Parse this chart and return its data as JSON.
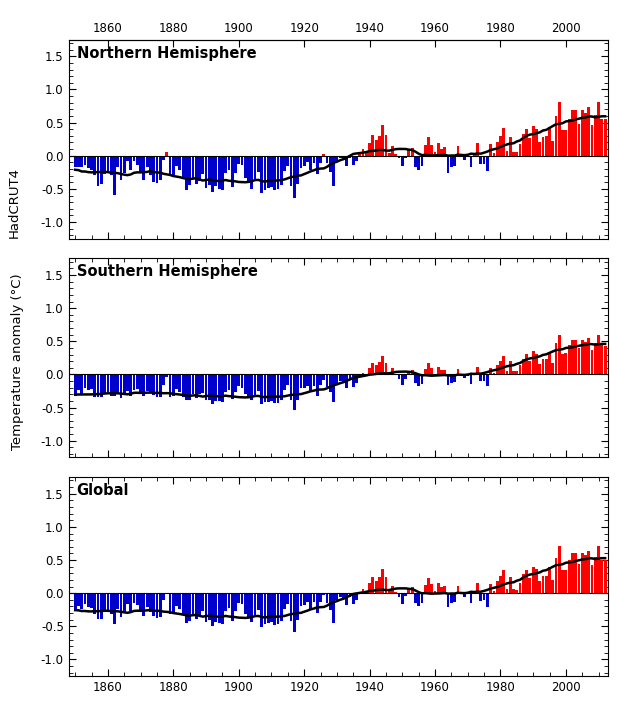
{
  "ylabel_top": "HadCRUT4",
  "ylabel_bot": "Temperature anomaly (°C)",
  "panels": [
    "Northern Hemisphere",
    "Southern Hemisphere",
    "Global"
  ],
  "years": [
    1850,
    1851,
    1852,
    1853,
    1854,
    1855,
    1856,
    1857,
    1858,
    1859,
    1860,
    1861,
    1862,
    1863,
    1864,
    1865,
    1866,
    1867,
    1868,
    1869,
    1870,
    1871,
    1872,
    1873,
    1874,
    1875,
    1876,
    1877,
    1878,
    1879,
    1880,
    1881,
    1882,
    1883,
    1884,
    1885,
    1886,
    1887,
    1888,
    1889,
    1890,
    1891,
    1892,
    1893,
    1894,
    1895,
    1896,
    1897,
    1898,
    1899,
    1900,
    1901,
    1902,
    1903,
    1904,
    1905,
    1906,
    1907,
    1908,
    1909,
    1910,
    1911,
    1912,
    1913,
    1914,
    1915,
    1916,
    1917,
    1918,
    1919,
    1920,
    1921,
    1922,
    1923,
    1924,
    1925,
    1926,
    1927,
    1928,
    1929,
    1930,
    1931,
    1932,
    1933,
    1934,
    1935,
    1936,
    1937,
    1938,
    1939,
    1940,
    1941,
    1942,
    1943,
    1944,
    1945,
    1946,
    1947,
    1948,
    1949,
    1950,
    1951,
    1952,
    1953,
    1954,
    1955,
    1956,
    1957,
    1958,
    1959,
    1960,
    1961,
    1962,
    1963,
    1964,
    1965,
    1966,
    1967,
    1968,
    1969,
    1970,
    1971,
    1972,
    1973,
    1974,
    1975,
    1976,
    1977,
    1978,
    1979,
    1980,
    1981,
    1982,
    1983,
    1984,
    1985,
    1986,
    1987,
    1988,
    1989,
    1990,
    1991,
    1992,
    1993,
    1994,
    1995,
    1996,
    1997,
    1998,
    1999,
    2000,
    2001,
    2002,
    2003,
    2004,
    2005,
    2006,
    2007,
    2008,
    2009,
    2010,
    2011,
    2012
  ],
  "nh": [
    -0.17,
    -0.164,
    -0.177,
    -0.133,
    -0.185,
    -0.221,
    -0.296,
    -0.457,
    -0.43,
    -0.274,
    -0.232,
    -0.288,
    -0.599,
    -0.177,
    -0.361,
    -0.262,
    -0.073,
    -0.208,
    -0.072,
    -0.146,
    -0.262,
    -0.372,
    -0.176,
    -0.291,
    -0.394,
    -0.407,
    -0.37,
    -0.066,
    0.064,
    -0.299,
    -0.283,
    -0.157,
    -0.213,
    -0.332,
    -0.516,
    -0.445,
    -0.34,
    -0.432,
    -0.374,
    -0.272,
    -0.494,
    -0.44,
    -0.553,
    -0.464,
    -0.497,
    -0.514,
    -0.263,
    -0.221,
    -0.474,
    -0.264,
    -0.117,
    -0.134,
    -0.341,
    -0.413,
    -0.495,
    -0.349,
    -0.245,
    -0.565,
    -0.52,
    -0.481,
    -0.465,
    -0.52,
    -0.497,
    -0.444,
    -0.237,
    -0.148,
    -0.453,
    -0.638,
    -0.422,
    -0.181,
    -0.157,
    -0.099,
    -0.213,
    -0.107,
    -0.277,
    -0.113,
    0.025,
    -0.108,
    -0.244,
    -0.464,
    -0.072,
    -0.029,
    -0.058,
    -0.152,
    -0.028,
    -0.133,
    -0.083,
    0.053,
    0.097,
    0.078,
    0.195,
    0.314,
    0.231,
    0.291,
    0.463,
    0.313,
    0.04,
    0.14,
    0.024,
    -0.04,
    -0.162,
    -0.029,
    0.108,
    0.122,
    -0.177,
    -0.213,
    -0.152,
    0.162,
    0.285,
    0.168,
    0.063,
    0.188,
    0.102,
    0.134,
    -0.253,
    -0.171,
    -0.148,
    0.144,
    0.018,
    -0.061,
    0.019,
    -0.17,
    0.02,
    0.193,
    -0.131,
    -0.119,
    -0.237,
    0.174,
    0.036,
    0.212,
    0.298,
    0.413,
    0.079,
    0.285,
    0.064,
    0.056,
    0.178,
    0.332,
    0.408,
    0.263,
    0.444,
    0.408,
    0.21,
    0.283,
    0.296,
    0.434,
    0.218,
    0.601,
    0.81,
    0.39,
    0.393,
    0.557,
    0.689,
    0.687,
    0.479,
    0.687,
    0.648,
    0.734,
    0.467,
    0.618,
    0.817,
    0.558,
    0.556
  ],
  "sh": [
    -0.329,
    -0.229,
    -0.288,
    -0.201,
    -0.24,
    -0.219,
    -0.338,
    -0.335,
    -0.344,
    -0.282,
    -0.262,
    -0.329,
    -0.328,
    -0.302,
    -0.351,
    -0.3,
    -0.253,
    -0.321,
    -0.232,
    -0.22,
    -0.269,
    -0.322,
    -0.256,
    -0.263,
    -0.303,
    -0.338,
    -0.339,
    -0.152,
    -0.045,
    -0.334,
    -0.322,
    -0.218,
    -0.261,
    -0.342,
    -0.384,
    -0.38,
    -0.293,
    -0.36,
    -0.292,
    -0.276,
    -0.387,
    -0.38,
    -0.44,
    -0.397,
    -0.401,
    -0.411,
    -0.267,
    -0.241,
    -0.366,
    -0.259,
    -0.17,
    -0.199,
    -0.299,
    -0.341,
    -0.382,
    -0.311,
    -0.253,
    -0.447,
    -0.421,
    -0.416,
    -0.404,
    -0.433,
    -0.424,
    -0.381,
    -0.235,
    -0.166,
    -0.392,
    -0.537,
    -0.382,
    -0.208,
    -0.204,
    -0.17,
    -0.264,
    -0.172,
    -0.319,
    -0.163,
    -0.083,
    -0.193,
    -0.268,
    -0.421,
    -0.143,
    -0.098,
    -0.111,
    -0.211,
    -0.083,
    -0.19,
    -0.129,
    -0.037,
    0.024,
    -0.002,
    0.096,
    0.17,
    0.138,
    0.183,
    0.271,
    0.178,
    0.02,
    0.09,
    0.01,
    -0.07,
    -0.163,
    -0.064,
    0.047,
    0.06,
    -0.13,
    -0.173,
    -0.139,
    0.079,
    0.174,
    0.095,
    0.01,
    0.119,
    0.072,
    0.072,
    -0.152,
    -0.136,
    -0.121,
    0.086,
    -0.011,
    -0.054,
    -0.021,
    -0.139,
    0.009,
    0.119,
    -0.093,
    -0.097,
    -0.168,
    0.102,
    0.015,
    0.139,
    0.209,
    0.283,
    0.054,
    0.201,
    0.048,
    0.053,
    0.142,
    0.237,
    0.303,
    0.204,
    0.353,
    0.314,
    0.163,
    0.232,
    0.233,
    0.343,
    0.18,
    0.471,
    0.601,
    0.307,
    0.317,
    0.44,
    0.521,
    0.522,
    0.396,
    0.522,
    0.49,
    0.552,
    0.374,
    0.468,
    0.601,
    0.437,
    0.436
  ],
  "global": [
    -0.248,
    -0.196,
    -0.232,
    -0.167,
    -0.213,
    -0.22,
    -0.317,
    -0.396,
    -0.387,
    -0.278,
    -0.247,
    -0.309,
    -0.464,
    -0.24,
    -0.356,
    -0.281,
    -0.163,
    -0.265,
    -0.152,
    -0.183,
    -0.265,
    -0.347,
    -0.216,
    -0.277,
    -0.349,
    -0.372,
    -0.355,
    -0.109,
    -0.01,
    -0.317,
    -0.303,
    -0.188,
    -0.237,
    -0.337,
    -0.45,
    -0.413,
    -0.317,
    -0.396,
    -0.333,
    -0.274,
    -0.441,
    -0.41,
    -0.497,
    -0.431,
    -0.449,
    -0.463,
    -0.265,
    -0.231,
    -0.42,
    -0.262,
    -0.144,
    -0.167,
    -0.32,
    -0.377,
    -0.439,
    -0.33,
    -0.249,
    -0.506,
    -0.471,
    -0.449,
    -0.435,
    -0.477,
    -0.46,
    -0.413,
    -0.236,
    -0.157,
    -0.422,
    -0.588,
    -0.402,
    -0.195,
    -0.181,
    -0.135,
    -0.238,
    -0.14,
    -0.298,
    -0.138,
    -0.029,
    -0.15,
    -0.256,
    -0.443,
    -0.108,
    -0.064,
    -0.084,
    -0.181,
    -0.056,
    -0.162,
    -0.106,
    0.008,
    0.061,
    0.038,
    0.146,
    0.242,
    0.185,
    0.237,
    0.367,
    0.245,
    0.03,
    0.115,
    0.017,
    -0.055,
    -0.163,
    -0.047,
    0.077,
    0.091,
    -0.154,
    -0.193,
    -0.146,
    0.121,
    0.23,
    0.132,
    0.037,
    0.154,
    0.087,
    0.103,
    -0.203,
    -0.154,
    -0.134,
    0.115,
    -0.004,
    -0.057,
    -0.001,
    -0.155,
    0.015,
    0.156,
    -0.112,
    -0.108,
    -0.203,
    0.138,
    0.026,
    0.176,
    0.254,
    0.348,
    0.067,
    0.243,
    0.056,
    0.055,
    0.16,
    0.285,
    0.356,
    0.234,
    0.399,
    0.361,
    0.187,
    0.258,
    0.265,
    0.389,
    0.199,
    0.536,
    0.706,
    0.349,
    0.355,
    0.499,
    0.605,
    0.605,
    0.438,
    0.605,
    0.569,
    0.643,
    0.421,
    0.543,
    0.709,
    0.498,
    0.496
  ],
  "xlim": [
    1848,
    2013
  ],
  "ylim": [
    -1.25,
    1.75
  ],
  "xticks": [
    1860,
    1880,
    1900,
    1920,
    1940,
    1960,
    1980,
    2000
  ],
  "yticks": [
    -1.0,
    -0.5,
    0.0,
    0.5,
    1.0,
    1.5
  ],
  "bar_color_pos": "#FF0000",
  "bar_color_neg": "#0000CC",
  "smooth_color": "#000000",
  "zero_line_color": "#000000",
  "bg_color": "#FFFFFF",
  "smooth_window": 21,
  "figsize": [
    6.24,
    7.23
  ],
  "dpi": 100
}
